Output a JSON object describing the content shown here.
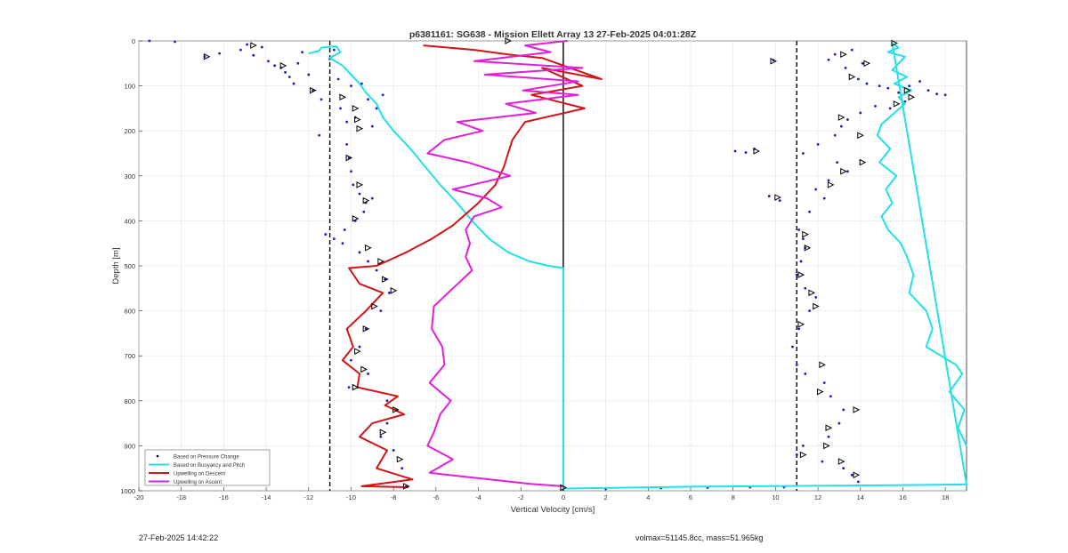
{
  "chart_data": {
    "type": "line",
    "title": "p6381161: SG638 - Mission Ellett Array 13 27-Feb-2025 04:01:28Z",
    "xlabel": "Vertical Velocity [cm/s]",
    "ylabel": "Depth [m]",
    "xlim": [
      -20,
      19
    ],
    "ylim": [
      0,
      1000
    ],
    "y_reversed": true,
    "grid": true,
    "x_ticks": [
      -20,
      -18,
      -16,
      -14,
      -12,
      -10,
      -8,
      -6,
      -4,
      -2,
      0,
      2,
      4,
      6,
      8,
      10,
      12,
      14,
      16,
      18
    ],
    "y_ticks": [
      0,
      100,
      200,
      300,
      400,
      500,
      600,
      700,
      800,
      900,
      1000
    ],
    "legend_position": "bottom-left",
    "vertical_lines": [
      {
        "x": -11,
        "style": "dashed",
        "color": "#000000"
      },
      {
        "x": 0,
        "style": "solid",
        "color": "#000000"
      },
      {
        "x": 11,
        "style": "dashed",
        "color": "#000000"
      }
    ],
    "series": [
      {
        "name": "Based on Pressure Change",
        "marker": "dot",
        "color": "#1a1acc",
        "points": [
          [
            -19.5,
            0
          ],
          [
            -18.3,
            2
          ],
          [
            -16.9,
            35
          ],
          [
            -16.2,
            28
          ],
          [
            -15.2,
            20
          ],
          [
            -14.9,
            8
          ],
          [
            -14.6,
            32
          ],
          [
            -14.2,
            14
          ],
          [
            -13.9,
            45
          ],
          [
            -13.6,
            55
          ],
          [
            -13.3,
            60
          ],
          [
            -13.1,
            70
          ],
          [
            -12.9,
            80
          ],
          [
            -12.7,
            95
          ],
          [
            -12.5,
            50
          ],
          [
            -12.3,
            25
          ],
          [
            -12.0,
            75
          ],
          [
            -11.8,
            110
          ],
          [
            -11.4,
            130
          ],
          [
            -11.0,
            40
          ],
          [
            -10.8,
            20
          ],
          [
            -10.6,
            85
          ],
          [
            -10.5,
            150
          ],
          [
            -10.2,
            180
          ],
          [
            -10.0,
            100
          ],
          [
            -9.8,
            170
          ],
          [
            -9.5,
            95
          ],
          [
            -9.2,
            130
          ],
          [
            -9.0,
            190
          ],
          [
            -8.8,
            150
          ],
          [
            -8.5,
            120
          ],
          [
            -11.5,
            210
          ],
          [
            -10.2,
            230
          ],
          [
            -10.1,
            260
          ],
          [
            -10.0,
            290
          ],
          [
            -9.9,
            320
          ],
          [
            -9.6,
            340
          ],
          [
            -9.3,
            360
          ],
          [
            -9.0,
            350
          ],
          [
            -9.4,
            380
          ],
          [
            -9.8,
            400
          ],
          [
            -10.3,
            420
          ],
          [
            -10.8,
            440
          ],
          [
            -11.2,
            430
          ],
          [
            -10.4,
            450
          ],
          [
            -9.6,
            470
          ],
          [
            -9.2,
            490
          ],
          [
            -8.8,
            510
          ],
          [
            -8.4,
            530
          ],
          [
            -8.2,
            560
          ],
          [
            -8.6,
            600
          ],
          [
            -9.3,
            640
          ],
          [
            -9.6,
            680
          ],
          [
            -10.0,
            710
          ],
          [
            -9.2,
            740
          ],
          [
            -10.1,
            770
          ],
          [
            -8.3,
            800
          ],
          [
            -7.9,
            820
          ],
          [
            -8.3,
            850
          ],
          [
            -8.6,
            880
          ],
          [
            -8.0,
            910
          ],
          [
            -7.6,
            950
          ],
          [
            -7.4,
            990
          ],
          [
            0.0,
            990
          ],
          [
            2.0,
            996
          ],
          [
            4.6,
            994
          ],
          [
            6.8,
            993
          ],
          [
            8.8,
            992
          ],
          [
            10.4,
            992
          ],
          [
            8.1,
            245
          ],
          [
            8.6,
            248
          ],
          [
            9.0,
            240
          ],
          [
            9.7,
            345
          ],
          [
            10.2,
            355
          ],
          [
            9.9,
            43
          ],
          [
            12.5,
            42
          ],
          [
            12.8,
            30
          ],
          [
            13.3,
            60
          ],
          [
            13.6,
            20
          ],
          [
            14.1,
            50
          ],
          [
            13.9,
            85
          ],
          [
            14.3,
            95
          ],
          [
            14.9,
            100
          ],
          [
            15.3,
            105
          ],
          [
            15.8,
            115
          ],
          [
            16.3,
            100
          ],
          [
            16.8,
            90
          ],
          [
            17.2,
            110
          ],
          [
            17.6,
            118
          ],
          [
            18.0,
            120
          ],
          [
            16.1,
            135
          ],
          [
            15.4,
            150
          ],
          [
            14.7,
            145
          ],
          [
            14.0,
            160
          ],
          [
            13.4,
            175
          ],
          [
            13.1,
            190
          ],
          [
            12.8,
            210
          ],
          [
            12.0,
            230
          ],
          [
            11.3,
            250
          ],
          [
            12.9,
            270
          ],
          [
            13.4,
            290
          ],
          [
            12.5,
            310
          ],
          [
            11.9,
            330
          ],
          [
            12.3,
            350
          ],
          [
            11.6,
            380
          ],
          [
            11.1,
            420
          ],
          [
            11.3,
            440
          ],
          [
            11.4,
            460
          ],
          [
            11.2,
            490
          ],
          [
            11.0,
            520
          ],
          [
            11.4,
            550
          ],
          [
            11.9,
            570
          ],
          [
            11.6,
            600
          ],
          [
            11.1,
            640
          ],
          [
            10.8,
            680
          ],
          [
            11.0,
            720
          ],
          [
            11.4,
            740
          ],
          [
            12.3,
            760
          ],
          [
            12.6,
            790
          ],
          [
            13.2,
            820
          ],
          [
            13.0,
            850
          ],
          [
            12.5,
            880
          ],
          [
            11.3,
            900
          ],
          [
            11.0,
            920
          ],
          [
            12.2,
            935
          ],
          [
            13.2,
            950
          ],
          [
            13.6,
            965
          ],
          [
            13.9,
            980
          ]
        ]
      },
      {
        "name": "Based on Buoyancy and Pitch",
        "color": "#22e0e8",
        "points": [
          [
            -12.0,
            28
          ],
          [
            -11.5,
            22
          ],
          [
            -11.4,
            15
          ],
          [
            -10.7,
            12
          ],
          [
            -10.5,
            25
          ],
          [
            -11.0,
            38
          ],
          [
            -10.4,
            55
          ],
          [
            -10.0,
            75
          ],
          [
            -9.6,
            95
          ],
          [
            -9.3,
            115
          ],
          [
            -8.8,
            140
          ],
          [
            -8.5,
            170
          ],
          [
            -8.0,
            200
          ],
          [
            -7.2,
            240
          ],
          [
            -6.5,
            280
          ],
          [
            -5.8,
            320
          ],
          [
            -5.0,
            360
          ],
          [
            -4.3,
            400
          ],
          [
            -3.5,
            440
          ],
          [
            -2.6,
            470
          ],
          [
            -1.6,
            490
          ],
          [
            -0.7,
            500
          ],
          [
            0.0,
            505
          ],
          [
            0.0,
            995
          ],
          [
            3,
            993
          ],
          [
            6,
            991
          ],
          [
            9,
            990
          ],
          [
            12,
            989
          ],
          [
            15,
            988
          ],
          [
            19,
            986
          ],
          [
            15.5,
            5
          ],
          [
            15.8,
            15
          ],
          [
            15.3,
            25
          ],
          [
            16.1,
            35
          ],
          [
            15.8,
            50
          ],
          [
            15.5,
            65
          ],
          [
            16.2,
            80
          ],
          [
            15.6,
            95
          ],
          [
            16.4,
            110
          ],
          [
            15.8,
            125
          ],
          [
            16.1,
            140
          ],
          [
            15.6,
            160
          ],
          [
            15.0,
            185
          ],
          [
            14.8,
            210
          ],
          [
            15.4,
            240
          ],
          [
            14.9,
            270
          ],
          [
            15.7,
            300
          ],
          [
            15.2,
            330
          ],
          [
            15.5,
            360
          ],
          [
            15.0,
            390
          ],
          [
            15.3,
            420
          ],
          [
            15.9,
            450
          ],
          [
            16.2,
            480
          ],
          [
            16.5,
            520
          ],
          [
            16.3,
            560
          ],
          [
            17.1,
            600
          ],
          [
            17.4,
            640
          ],
          [
            17.1,
            680
          ],
          [
            18.5,
            720
          ],
          [
            18.8,
            740
          ],
          [
            18.2,
            780
          ],
          [
            18.9,
            820
          ],
          [
            18.6,
            860
          ],
          [
            19.0,
            900
          ]
        ]
      },
      {
        "name": "Upwelling on Descent",
        "color": "#d21414",
        "points": [
          [
            -6.6,
            10
          ],
          [
            -4.2,
            20
          ],
          [
            -2.6,
            30
          ],
          [
            -1.0,
            38
          ],
          [
            1.8,
            85
          ],
          [
            -1.0,
            60
          ],
          [
            0.9,
            100
          ],
          [
            -1.5,
            120
          ],
          [
            1.0,
            150
          ],
          [
            -1.8,
            180
          ],
          [
            -2.4,
            220
          ],
          [
            -2.6,
            250
          ],
          [
            -2.8,
            280
          ],
          [
            -3.2,
            320
          ],
          [
            -4.0,
            360
          ],
          [
            -5.2,
            410
          ],
          [
            -6.2,
            440
          ],
          [
            -7.4,
            470
          ],
          [
            -8.8,
            500
          ],
          [
            -10.1,
            505
          ],
          [
            -9.6,
            540
          ],
          [
            -8.5,
            560
          ],
          [
            -9.3,
            600
          ],
          [
            -10.2,
            640
          ],
          [
            -9.9,
            680
          ],
          [
            -10.4,
            710
          ],
          [
            -9.6,
            740
          ],
          [
            -9.7,
            770
          ],
          [
            -7.8,
            790
          ],
          [
            -8.4,
            810
          ],
          [
            -7.5,
            830
          ],
          [
            -9.0,
            850
          ],
          [
            -9.6,
            880
          ],
          [
            -8.3,
            910
          ],
          [
            -8.8,
            950
          ],
          [
            -7.1,
            975
          ],
          [
            -9.5,
            990
          ],
          [
            -7.3,
            992
          ]
        ]
      },
      {
        "name": "Upwelling on Ascent",
        "color": "#e21ed9",
        "points": [
          [
            0.2,
            0
          ],
          [
            -1.8,
            10
          ],
          [
            -0.6,
            25
          ],
          [
            -4.2,
            45
          ],
          [
            0.9,
            60
          ],
          [
            -3.7,
            75
          ],
          [
            0.7,
            90
          ],
          [
            -1.9,
            110
          ],
          [
            0.7,
            120
          ],
          [
            -2.7,
            140
          ],
          [
            -1.3,
            160
          ],
          [
            -5.0,
            180
          ],
          [
            -3.8,
            200
          ],
          [
            -5.6,
            220
          ],
          [
            -6.4,
            250
          ],
          [
            -4.5,
            270
          ],
          [
            -2.5,
            300
          ],
          [
            -5.2,
            330
          ],
          [
            -3.6,
            350
          ],
          [
            -2.9,
            370
          ],
          [
            -4.2,
            390
          ],
          [
            -4.6,
            420
          ],
          [
            -4.4,
            450
          ],
          [
            -4.6,
            480
          ],
          [
            -4.3,
            510
          ],
          [
            -5.2,
            550
          ],
          [
            -6.1,
            590
          ],
          [
            -6.2,
            640
          ],
          [
            -5.7,
            680
          ],
          [
            -5.6,
            720
          ],
          [
            -6.3,
            760
          ],
          [
            -5.3,
            800
          ],
          [
            -5.8,
            830
          ],
          [
            -6.1,
            870
          ],
          [
            -6.4,
            900
          ],
          [
            -5.2,
            930
          ],
          [
            -6.3,
            960
          ],
          [
            -1.5,
            985
          ],
          [
            0.0,
            990
          ]
        ]
      }
    ],
    "triangle_markers": [
      [
        -14.6,
        10
      ],
      [
        -16.8,
        35
      ],
      [
        -13.2,
        55
      ],
      [
        -11.8,
        110
      ],
      [
        -10.4,
        125
      ],
      [
        -9.8,
        150
      ],
      [
        -9.7,
        175
      ],
      [
        -9.6,
        195
      ],
      [
        -10.1,
        260
      ],
      [
        -9.6,
        320
      ],
      [
        -9.3,
        355
      ],
      [
        -9.8,
        395
      ],
      [
        -9.2,
        460
      ],
      [
        -8.6,
        490
      ],
      [
        -8.4,
        530
      ],
      [
        -8.0,
        555
      ],
      [
        -8.9,
        590
      ],
      [
        -9.3,
        640
      ],
      [
        -9.7,
        690
      ],
      [
        -9.4,
        730
      ],
      [
        -9.8,
        770
      ],
      [
        -7.9,
        820
      ],
      [
        -8.5,
        870
      ],
      [
        -7.7,
        930
      ],
      [
        -7.4,
        990
      ],
      [
        -2.6,
        0
      ],
      [
        0.0,
        993
      ],
      [
        9.1,
        245
      ],
      [
        9.9,
        45
      ],
      [
        10.1,
        348
      ],
      [
        15.6,
        5
      ],
      [
        13.2,
        30
      ],
      [
        14.3,
        50
      ],
      [
        13.6,
        80
      ],
      [
        16.2,
        110
      ],
      [
        16.4,
        125
      ],
      [
        15.7,
        140
      ],
      [
        13.1,
        170
      ],
      [
        14.0,
        210
      ],
      [
        14.1,
        270
      ],
      [
        13.2,
        290
      ],
      [
        12.6,
        320
      ],
      [
        11.4,
        430
      ],
      [
        11.5,
        460
      ],
      [
        11.2,
        520
      ],
      [
        11.7,
        560
      ],
      [
        11.9,
        590
      ],
      [
        11.2,
        630
      ],
      [
        12.2,
        720
      ],
      [
        12.1,
        780
      ],
      [
        13.8,
        820
      ],
      [
        12.5,
        860
      ],
      [
        12.4,
        900
      ],
      [
        11.3,
        920
      ],
      [
        13.1,
        935
      ],
      [
        13.8,
        965
      ]
    ]
  },
  "footer": {
    "timestamp": "27-Feb-2025 14:42:22",
    "params": "volmax=51145.8cc, mass=51.965kg"
  }
}
